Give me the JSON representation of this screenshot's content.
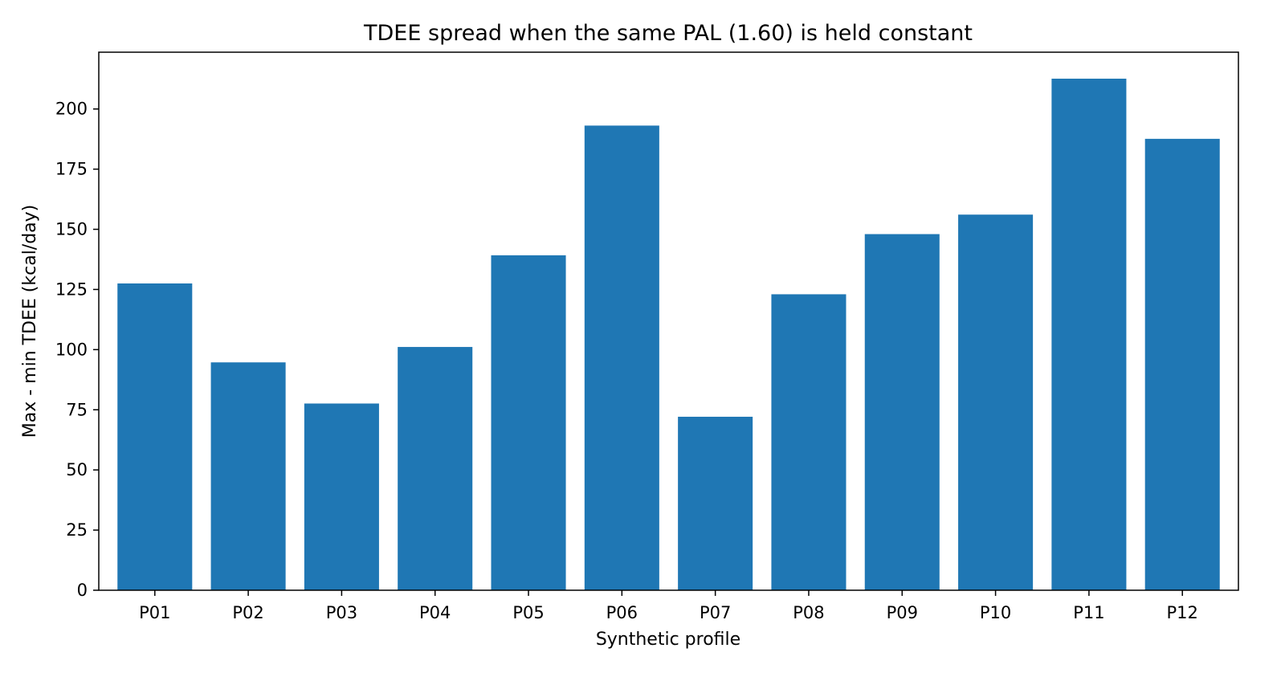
{
  "chart_data": {
    "type": "bar",
    "title": "TDEE spread when the same PAL (1.60) is held constant",
    "xlabel": "Synthetic profile",
    "ylabel": "Max - min TDEE (kcal/day)",
    "categories": [
      "P01",
      "P02",
      "P03",
      "P04",
      "P05",
      "P06",
      "P07",
      "P08",
      "P09",
      "P10",
      "P11",
      "P12"
    ],
    "values": [
      127.5,
      94.7,
      77.6,
      101.1,
      139.2,
      193.1,
      72.1,
      123.0,
      148.0,
      156.1,
      212.6,
      187.6
    ],
    "ylim": [
      0,
      223.6
    ],
    "yticks": [
      0,
      25,
      50,
      75,
      100,
      125,
      150,
      175,
      200
    ],
    "bar_color": "#1f77b4",
    "grid": false,
    "legend": "none"
  }
}
